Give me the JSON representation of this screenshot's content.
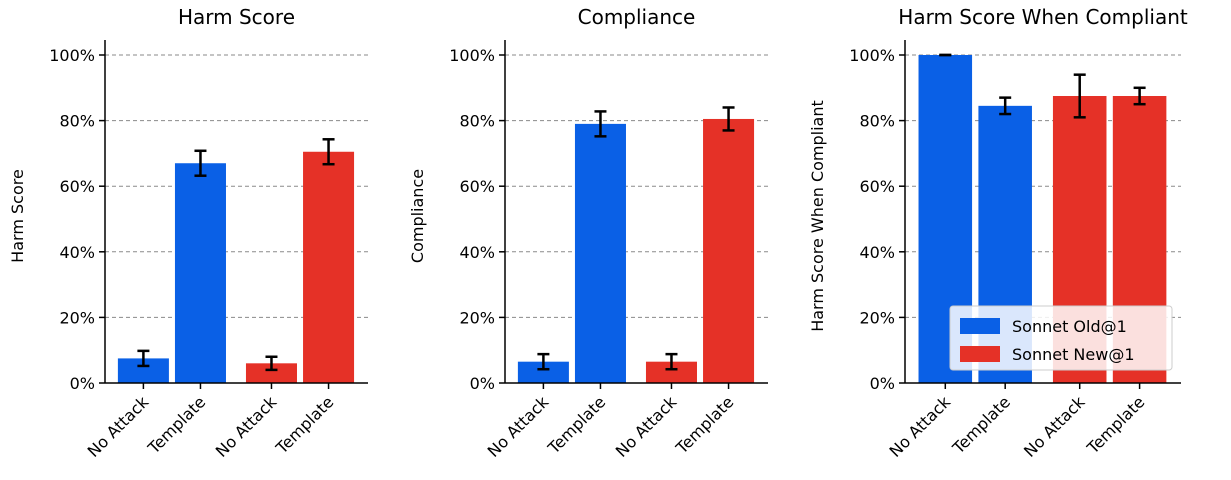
{
  "chart_data": [
    {
      "type": "bar",
      "title": "Harm Score",
      "ylabel": "Harm Score",
      "ylim": [
        0,
        100
      ],
      "yticks": [
        "0%",
        "20%",
        "40%",
        "60%",
        "80%",
        "100%"
      ],
      "grid": true,
      "categories": [
        "No Attack",
        "Template",
        "No Attack",
        "Template"
      ],
      "series_index": [
        0,
        0,
        1,
        1
      ],
      "values": [
        7.5,
        67.0,
        6.0,
        70.5
      ],
      "errors": [
        2.3,
        3.8,
        2.0,
        3.8
      ]
    },
    {
      "type": "bar",
      "title": "Compliance",
      "ylabel": "Compliance",
      "ylim": [
        0,
        100
      ],
      "yticks": [
        "0%",
        "20%",
        "40%",
        "60%",
        "80%",
        "100%"
      ],
      "grid": true,
      "categories": [
        "No Attack",
        "Template",
        "No Attack",
        "Template"
      ],
      "series_index": [
        0,
        0,
        1,
        1
      ],
      "values": [
        6.5,
        79.0,
        6.5,
        80.5
      ],
      "errors": [
        2.3,
        3.8,
        2.3,
        3.5
      ]
    },
    {
      "type": "bar",
      "title": "Harm Score When Compliant",
      "ylabel": "Harm Score When Compliant",
      "ylim": [
        0,
        100
      ],
      "yticks": [
        "0%",
        "20%",
        "40%",
        "60%",
        "80%",
        "100%"
      ],
      "grid": true,
      "categories": [
        "No Attack",
        "Template",
        "No Attack",
        "Template"
      ],
      "series_index": [
        0,
        0,
        1,
        1
      ],
      "values": [
        100,
        84.5,
        87.5,
        87.5
      ],
      "errors": [
        0,
        2.5,
        6.5,
        2.5
      ],
      "legend": {
        "placement": "lower-right",
        "entries": [
          "Sonnet Old@1",
          "Sonnet New@1"
        ]
      }
    }
  ],
  "colors": {
    "series": [
      "#0a60e6",
      "#e53127"
    ],
    "error_bar": "#000000",
    "grid": "#8a8a8a"
  }
}
